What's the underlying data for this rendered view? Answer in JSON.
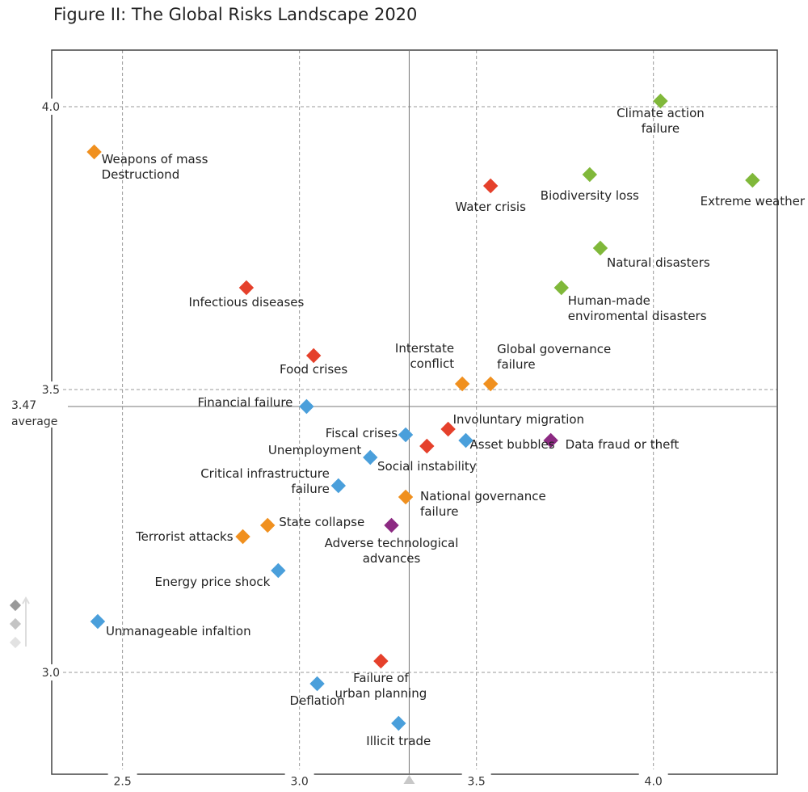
{
  "chart_data": {
    "type": "scatter",
    "title": "Figure II: The Global Risks Landscape 2020",
    "xlim": [
      2.3,
      4.35
    ],
    "ylim": [
      2.82,
      4.1
    ],
    "x_ticks": [
      {
        "value": 2.5,
        "label": "2.5"
      },
      {
        "value": 3.0,
        "label": "3.0"
      },
      {
        "value": 3.5,
        "label": "3.5"
      },
      {
        "value": 4.0,
        "label": "4.0"
      }
    ],
    "y_ticks": [
      {
        "value": 3.0,
        "label": "3.0"
      },
      {
        "value": 3.5,
        "label": "3.5"
      },
      {
        "value": 4.0,
        "label": "4.0"
      }
    ],
    "x_average": 3.31,
    "y_average": {
      "value": 3.47,
      "label_value": "3.47",
      "label_text": "average"
    },
    "grid": true,
    "colors": {
      "economic": "#4a9fdb",
      "environmental": "#80b83a",
      "geopolitical": "#f0901f",
      "societal": "#e5402b",
      "technological": "#8c2a82"
    },
    "points": [
      {
        "name": "Weapons of mass Destructiond",
        "lines": [
          "Weapons of mass",
          "Destructiond"
        ],
        "category": "geopolitical",
        "x": 2.42,
        "y": 3.92,
        "anchor": "start"
      },
      {
        "name": "Climate action failure",
        "lines": [
          "Climate action",
          "failure"
        ],
        "category": "environmental",
        "x": 4.02,
        "y": 4.01,
        "anchor": "middle"
      },
      {
        "name": "Water crisis",
        "lines": [
          "Water crisis"
        ],
        "category": "societal",
        "x": 3.54,
        "y": 3.86,
        "anchor": "middle"
      },
      {
        "name": "Biodiversity loss",
        "lines": [
          "Biodiversity loss"
        ],
        "category": "environmental",
        "x": 3.82,
        "y": 3.88,
        "anchor": "middle"
      },
      {
        "name": "Extreme weather",
        "lines": [
          "Extreme weather"
        ],
        "category": "environmental",
        "x": 4.28,
        "y": 3.87,
        "anchor": "middle"
      },
      {
        "name": "Natural disasters",
        "lines": [
          "Natural disasters"
        ],
        "category": "environmental",
        "x": 3.85,
        "y": 3.75,
        "anchor": "start"
      },
      {
        "name": "Infectious diseases",
        "lines": [
          "Infectious diseases"
        ],
        "category": "societal",
        "x": 2.85,
        "y": 3.68,
        "anchor": "middle"
      },
      {
        "name": "Human-made enviromental disasters",
        "lines": [
          "Human-made",
          "enviromental disasters"
        ],
        "category": "environmental",
        "x": 3.74,
        "y": 3.68,
        "anchor": "start"
      },
      {
        "name": "Food crises",
        "lines": [
          "Food crises"
        ],
        "category": "societal",
        "x": 3.04,
        "y": 3.56,
        "anchor": "middle"
      },
      {
        "name": "Interstate conflict",
        "lines": [
          "Interstate",
          "conflict"
        ],
        "category": "geopolitical",
        "x": 3.46,
        "y": 3.51,
        "anchor": "end"
      },
      {
        "name": "Global governance failure",
        "lines": [
          "Global  governance",
          "failure"
        ],
        "category": "geopolitical",
        "x": 3.54,
        "y": 3.51,
        "anchor": "start"
      },
      {
        "name": "Financial failure",
        "lines": [
          "Financial failure"
        ],
        "category": "economic",
        "x": 3.02,
        "y": 3.47,
        "anchor": "end"
      },
      {
        "name": "Fiscal crises",
        "lines": [
          "Fiscal crises"
        ],
        "category": "economic",
        "x": 3.3,
        "y": 3.42,
        "anchor": "end"
      },
      {
        "name": "Involuntary migration",
        "lines": [
          "Involuntary migration"
        ],
        "category": "societal",
        "x": 3.42,
        "y": 3.43,
        "anchor": "start"
      },
      {
        "name": "Asset bubbles",
        "lines": [
          "Asset bubbles"
        ],
        "category": "economic",
        "x": 3.47,
        "y": 3.41,
        "anchor": "start"
      },
      {
        "name": "Data fraud or theft",
        "lines": [
          "Data fraud or theft"
        ],
        "category": "technological",
        "x": 3.71,
        "y": 3.41,
        "anchor": "start"
      },
      {
        "name": "Social instability",
        "lines": [
          "Social instability"
        ],
        "category": "societal",
        "x": 3.36,
        "y": 3.4,
        "anchor": "middle"
      },
      {
        "name": "Unemployment",
        "lines": [
          "Unemployment"
        ],
        "category": "economic",
        "x": 3.2,
        "y": 3.38,
        "anchor": "end"
      },
      {
        "name": "Critical infrastructure failure",
        "lines": [
          "Critical infrastructure",
          "failure"
        ],
        "category": "economic",
        "x": 3.11,
        "y": 3.33,
        "anchor": "end"
      },
      {
        "name": "National governance failure",
        "lines": [
          "National governance",
          "failure"
        ],
        "category": "geopolitical",
        "x": 3.3,
        "y": 3.31,
        "anchor": "start"
      },
      {
        "name": "State collapse",
        "lines": [
          "State collapse"
        ],
        "category": "geopolitical",
        "x": 2.91,
        "y": 3.26,
        "anchor": "start"
      },
      {
        "name": "Adverse technological advances",
        "lines": [
          "Adverse technological",
          "advances"
        ],
        "category": "technological",
        "x": 3.26,
        "y": 3.26,
        "anchor": "middle"
      },
      {
        "name": "Terrorist attacks",
        "lines": [
          "Terrorist attacks"
        ],
        "category": "geopolitical",
        "x": 2.84,
        "y": 3.24,
        "anchor": "end"
      },
      {
        "name": "Energy price shock",
        "lines": [
          "Energy price shock"
        ],
        "category": "economic",
        "x": 2.94,
        "y": 3.18,
        "anchor": "end"
      },
      {
        "name": "Unmanageable infaltion",
        "lines": [
          "Unmanageable infaltion"
        ],
        "category": "economic",
        "x": 2.43,
        "y": 3.09,
        "anchor": "start"
      },
      {
        "name": "Failure of urban planning",
        "lines": [
          "Failure of",
          "urban planning"
        ],
        "category": "societal",
        "x": 3.23,
        "y": 3.02,
        "anchor": "middle"
      },
      {
        "name": "Deflation",
        "lines": [
          "Deflation"
        ],
        "category": "economic",
        "x": 3.05,
        "y": 2.98,
        "anchor": "middle"
      },
      {
        "name": "Illicit trade",
        "lines": [
          "Illicit trade"
        ],
        "category": "economic",
        "x": 3.28,
        "y": 2.91,
        "anchor": "middle"
      }
    ]
  }
}
